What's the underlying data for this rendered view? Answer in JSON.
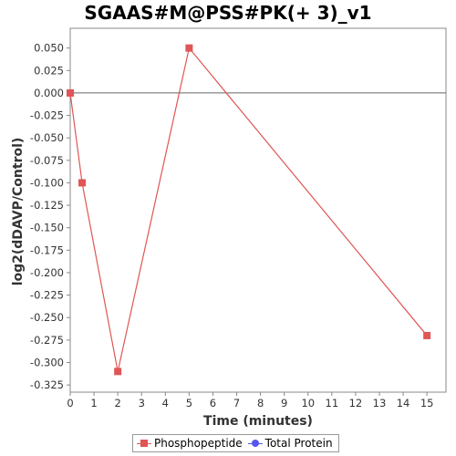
{
  "chart_data": {
    "type": "line",
    "title": "SGAAS#M@PSS#PK(+ 3)_v1",
    "xlabel": "Time (minutes)",
    "ylabel": "log2(dDAVP/Control)",
    "xlim": [
      0,
      15.8
    ],
    "ylim": [
      -0.333,
      0.072
    ],
    "x_ticks": [
      0,
      1,
      2,
      3,
      4,
      5,
      6,
      7,
      8,
      9,
      10,
      11,
      12,
      13,
      14,
      15
    ],
    "y_ticks": [
      0.05,
      0.025,
      0.0,
      -0.025,
      -0.05,
      -0.075,
      -0.1,
      -0.125,
      -0.15,
      -0.175,
      -0.2,
      -0.225,
      -0.25,
      -0.275,
      -0.3,
      -0.325
    ],
    "y_tick_labels": [
      "0.050",
      "0.025",
      "0.000",
      "-0.025",
      "-0.050",
      "-0.075",
      "-0.100",
      "-0.125",
      "-0.150",
      "-0.175",
      "-0.200",
      "-0.225",
      "-0.250",
      "-0.275",
      "-0.300",
      "-0.325"
    ],
    "zero_line": true,
    "grid": false,
    "legend_position": "bottom",
    "series": [
      {
        "name": "Phosphopeptide",
        "color": "#e05555",
        "marker": "square",
        "x": [
          0,
          0.5,
          2,
          5,
          15
        ],
        "y": [
          0.0,
          -0.1,
          -0.31,
          0.05,
          -0.27
        ]
      },
      {
        "name": "Total Protein",
        "color": "#5555ee",
        "marker": "circle",
        "x": [],
        "y": []
      }
    ]
  }
}
